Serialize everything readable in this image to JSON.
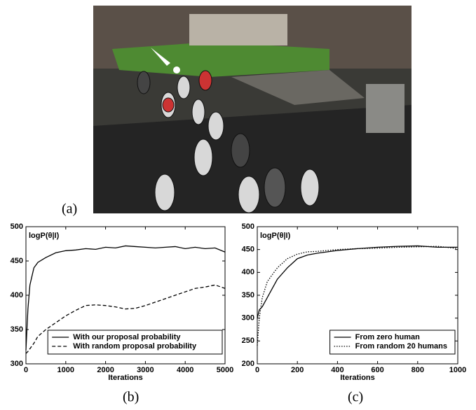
{
  "figure_labels": [
    "(a)",
    "(b)",
    "(c)"
  ],
  "chart_data": [
    {
      "type": "line",
      "ylabel": "logP(θ|I)",
      "xlabel": "Iterations",
      "x": [
        0,
        50,
        100,
        200,
        300,
        500,
        750,
        1000,
        1250,
        1500,
        1750,
        2000,
        2250,
        2500,
        2750,
        3000,
        3250,
        3500,
        3750,
        4000,
        4250,
        4500,
        4750,
        5000
      ],
      "series": [
        {
          "name": "With our proposal probability",
          "color": "#000000",
          "dash": "solid",
          "values": [
            320,
            380,
            415,
            440,
            448,
            455,
            462,
            465,
            466,
            468,
            467,
            470,
            469,
            472,
            471,
            470,
            469,
            470,
            471,
            468,
            470,
            468,
            469,
            463
          ]
        },
        {
          "name": "With random proposal probability",
          "color": "#000000",
          "dash": "dashed",
          "values": [
            315,
            318,
            322,
            330,
            340,
            350,
            360,
            370,
            378,
            385,
            386,
            385,
            383,
            380,
            381,
            385,
            390,
            395,
            400,
            405,
            410,
            412,
            415,
            410
          ]
        }
      ],
      "xlim": [
        0,
        5000
      ],
      "xticks": [
        0,
        1000,
        2000,
        3000,
        4000,
        5000
      ],
      "ylim": [
        300,
        500
      ],
      "yticks": [
        300,
        350,
        400,
        450,
        500
      ],
      "legend": "lower right",
      "grid": false
    },
    {
      "type": "line",
      "ylabel": "logP(θ|I)",
      "xlabel": "Iterations",
      "x": [
        0,
        10,
        25,
        50,
        75,
        100,
        150,
        200,
        250,
        300,
        400,
        500,
        600,
        700,
        800,
        900,
        1000
      ],
      "series": [
        {
          "name": "From zero human",
          "color": "#000000",
          "dash": "solid",
          "values": [
            300,
            318,
            325,
            345,
            365,
            385,
            410,
            430,
            438,
            442,
            448,
            452,
            455,
            457,
            458,
            455,
            455
          ]
        },
        {
          "name": "From random 20 humans",
          "color": "#000000",
          "dash": "dotted",
          "values": [
            240,
            300,
            345,
            380,
            395,
            410,
            430,
            440,
            445,
            446,
            450,
            452,
            453,
            455,
            456,
            457,
            452
          ]
        }
      ],
      "xlim": [
        0,
        1000
      ],
      "xticks": [
        0,
        200,
        400,
        600,
        800,
        1000
      ],
      "ylim": [
        200,
        500
      ],
      "yticks": [
        200,
        250,
        300,
        350,
        400,
        450,
        500
      ],
      "legend": "lower right",
      "grid": false
    }
  ]
}
